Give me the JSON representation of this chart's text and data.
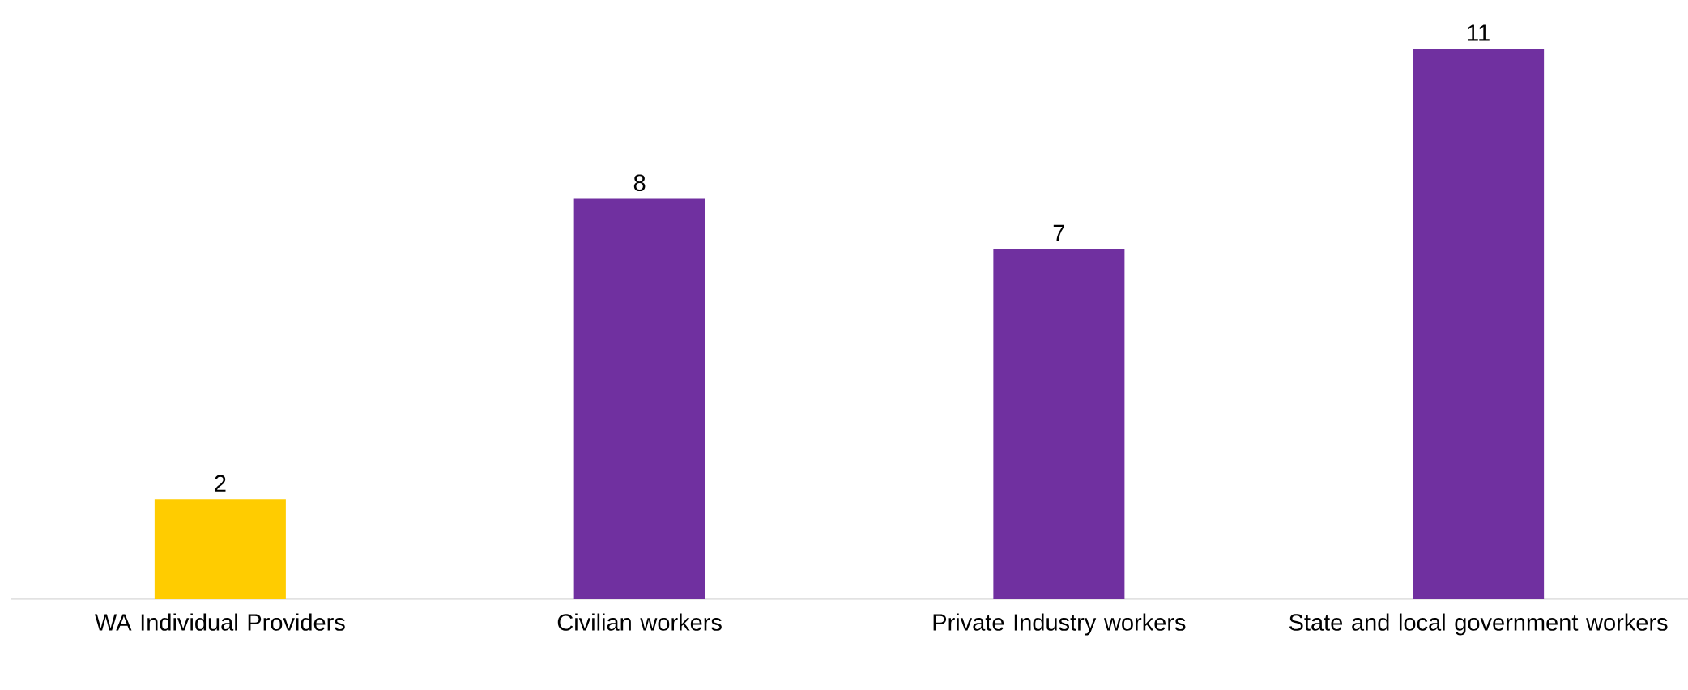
{
  "chart_data": {
    "type": "bar",
    "categories": [
      "WA Individual Providers",
      "Civilian workers",
      "Private Industry workers",
      "State and local government workers"
    ],
    "values": [
      2,
      8,
      7,
      11
    ],
    "colors": [
      "#ffcc00",
      "#7030a0",
      "#7030a0",
      "#7030a0"
    ],
    "data_labels": true
  }
}
